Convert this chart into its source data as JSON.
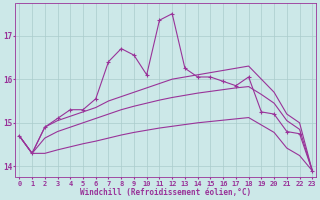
{
  "xlabel": "Windchill (Refroidissement éolien,°C)",
  "x": [
    0,
    1,
    2,
    3,
    4,
    5,
    6,
    7,
    8,
    9,
    10,
    11,
    12,
    13,
    14,
    15,
    16,
    17,
    18,
    19,
    20,
    21,
    22,
    23
  ],
  "line_main": [
    14.7,
    14.3,
    14.9,
    15.1,
    15.3,
    15.3,
    15.55,
    16.4,
    16.7,
    16.55,
    16.1,
    17.35,
    17.5,
    16.25,
    16.05,
    16.05,
    15.95,
    15.85,
    16.05,
    15.25,
    15.2,
    14.8,
    14.75,
    13.9
  ],
  "line_top": [
    14.7,
    14.3,
    14.9,
    15.05,
    15.15,
    15.25,
    15.35,
    15.5,
    15.6,
    15.7,
    15.8,
    15.9,
    16.0,
    16.05,
    16.1,
    16.15,
    16.2,
    16.25,
    16.3,
    16.0,
    15.7,
    15.2,
    15.0,
    13.9
  ],
  "line_mid": [
    14.7,
    14.3,
    14.65,
    14.8,
    14.9,
    15.0,
    15.1,
    15.2,
    15.3,
    15.38,
    15.45,
    15.52,
    15.58,
    15.63,
    15.68,
    15.72,
    15.76,
    15.8,
    15.83,
    15.65,
    15.45,
    15.05,
    14.85,
    13.9
  ],
  "line_bot": [
    14.7,
    14.3,
    14.3,
    14.38,
    14.45,
    14.52,
    14.58,
    14.65,
    14.72,
    14.78,
    14.83,
    14.88,
    14.92,
    14.96,
    15.0,
    15.03,
    15.06,
    15.09,
    15.12,
    14.95,
    14.78,
    14.42,
    14.25,
    13.9
  ],
  "bg_color": "#cce8e8",
  "line_color": "#993399",
  "grid_color": "#aacccc",
  "ylim": [
    13.75,
    17.75
  ],
  "yticks": [
    14,
    15,
    16,
    17
  ],
  "xticks": [
    0,
    1,
    2,
    3,
    4,
    5,
    6,
    7,
    8,
    9,
    10,
    11,
    12,
    13,
    14,
    15,
    16,
    17,
    18,
    19,
    20,
    21,
    22,
    23
  ]
}
